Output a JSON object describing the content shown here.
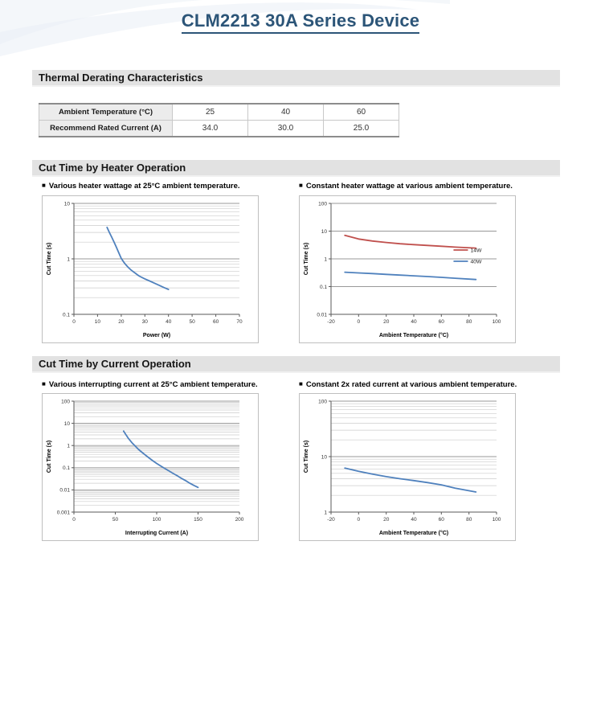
{
  "page": {
    "title": "CLM2213 30A Series Device"
  },
  "icons": {
    "bullet": "■"
  },
  "colors": {
    "title_blue": "#2C5578",
    "section_bar_bg": "#E2E2E2",
    "table_label_bg": "#ECECEC",
    "series_blue": "#4F81BD",
    "series_red": "#C0504D"
  },
  "sections": {
    "thermal": {
      "title": "Thermal Derating Characteristics"
    },
    "heater": {
      "title": "Cut Time by Heater Operation",
      "left_caption": "Various heater wattage at 25°C ambient temperature.",
      "right_caption": "Constant heater wattage at various ambient temperature."
    },
    "current": {
      "title": "Cut Time by Current Operation",
      "left_caption": "Various interrupting current at 25°C ambient temperature.",
      "right_caption": "Constant 2x rated current at various ambient temperature."
    }
  },
  "table": {
    "rows": [
      {
        "label": "Ambient Temperature (°C)",
        "values": [
          "25",
          "40",
          "60"
        ]
      },
      {
        "label": "Recommend Rated Current (A)",
        "values": [
          "34.0",
          "30.0",
          "25.0"
        ]
      }
    ]
  },
  "chart_data": [
    {
      "name": "various-heater-wattage-25c",
      "type": "line",
      "xlabel": "Power (W)",
      "ylabel": "Cut Time (s)",
      "x_scale": "linear",
      "y_scale": "log",
      "xlim": [
        0,
        70
      ],
      "x_ticks": [
        0,
        10,
        20,
        30,
        40,
        50,
        60,
        70
      ],
      "x_tick_labels": [
        "0",
        "10",
        "20",
        "30",
        "40",
        "50",
        "60",
        "70"
      ],
      "ylim": [
        0.1,
        10
      ],
      "y_ticks": [
        0.1,
        1,
        10
      ],
      "y_tick_labels": [
        "0.1",
        "1",
        "10"
      ],
      "minor_gridlines": true,
      "legend": false,
      "series": [
        {
          "name": "",
          "color": "#4F81BD",
          "points": [
            [
              14,
              3.7
            ],
            [
              15,
              3.0
            ],
            [
              16,
              2.45
            ],
            [
              17,
              2.0
            ],
            [
              18,
              1.6
            ],
            [
              19,
              1.28
            ],
            [
              20,
              1.02
            ],
            [
              21,
              0.88
            ],
            [
              22,
              0.78
            ],
            [
              23,
              0.7
            ],
            [
              24,
              0.64
            ],
            [
              25,
              0.59
            ],
            [
              26,
              0.55
            ],
            [
              27,
              0.51
            ],
            [
              28,
              0.48
            ],
            [
              30,
              0.435
            ],
            [
              32,
              0.4
            ],
            [
              34,
              0.365
            ],
            [
              36,
              0.335
            ],
            [
              38,
              0.305
            ],
            [
              40,
              0.28
            ]
          ]
        }
      ]
    },
    {
      "name": "constant-heater-wattage-vs-ambient",
      "type": "line",
      "xlabel": "Ambient Temperature (°C)",
      "ylabel": "Cut Time (s)",
      "x_scale": "linear",
      "y_scale": "log",
      "xlim": [
        -20,
        100
      ],
      "x_ticks": [
        -20,
        0,
        20,
        40,
        60,
        80,
        100
      ],
      "x_tick_labels": [
        "-20",
        "0",
        "20",
        "40",
        "60",
        "80",
        "100"
      ],
      "ylim": [
        0.01,
        100
      ],
      "y_ticks": [
        0.01,
        0.1,
        1,
        10,
        100
      ],
      "y_tick_labels": [
        "0.01",
        "0.1",
        "1",
        "10",
        "100"
      ],
      "minor_gridlines": false,
      "legend": true,
      "series": [
        {
          "name": "14W",
          "color": "#C0504D",
          "points": [
            [
              -10,
              7.0
            ],
            [
              0,
              5.2
            ],
            [
              10,
              4.4
            ],
            [
              20,
              3.9
            ],
            [
              30,
              3.5
            ],
            [
              40,
              3.25
            ],
            [
              50,
              3.05
            ],
            [
              60,
              2.85
            ],
            [
              70,
              2.65
            ],
            [
              85,
              2.45
            ]
          ]
        },
        {
          "name": "40W",
          "color": "#4F81BD",
          "points": [
            [
              -10,
              0.33
            ],
            [
              0,
              0.31
            ],
            [
              10,
              0.295
            ],
            [
              20,
              0.275
            ],
            [
              30,
              0.26
            ],
            [
              40,
              0.245
            ],
            [
              50,
              0.23
            ],
            [
              60,
              0.215
            ],
            [
              70,
              0.2
            ],
            [
              85,
              0.18
            ]
          ]
        }
      ]
    },
    {
      "name": "various-interrupting-current-25c",
      "type": "line",
      "xlabel": "Interrupting Current (A)",
      "ylabel": "Cut Time (s)",
      "x_scale": "linear",
      "y_scale": "log",
      "xlim": [
        0,
        200
      ],
      "x_ticks": [
        0,
        50,
        100,
        150,
        200
      ],
      "x_tick_labels": [
        "0",
        "50",
        "100",
        "150",
        "200"
      ],
      "ylim": [
        0.001,
        100
      ],
      "y_ticks": [
        0.001,
        0.01,
        0.1,
        1,
        10,
        100
      ],
      "y_tick_labels": [
        "0.001",
        "0.01",
        "0.1",
        "1",
        "10",
        "100"
      ],
      "minor_gridlines": true,
      "legend": false,
      "series": [
        {
          "name": "",
          "color": "#4F81BD",
          "points": [
            [
              60,
              4.5
            ],
            [
              63,
              3.0
            ],
            [
              66,
              2.05
            ],
            [
              70,
              1.35
            ],
            [
              74,
              0.95
            ],
            [
              78,
              0.67
            ],
            [
              82,
              0.5
            ],
            [
              86,
              0.38
            ],
            [
              90,
              0.29
            ],
            [
              95,
              0.21
            ],
            [
              100,
              0.155
            ],
            [
              105,
              0.118
            ],
            [
              110,
              0.091
            ],
            [
              115,
              0.071
            ],
            [
              120,
              0.055
            ],
            [
              125,
              0.043
            ],
            [
              130,
              0.033
            ],
            [
              135,
              0.026
            ],
            [
              140,
              0.02
            ],
            [
              145,
              0.016
            ],
            [
              150,
              0.013
            ]
          ]
        }
      ]
    },
    {
      "name": "constant-2x-rated-current-vs-ambient",
      "type": "line",
      "xlabel": "Ambient Temperature (°C)",
      "ylabel": "Cut Time (s)",
      "x_scale": "linear",
      "y_scale": "log",
      "xlim": [
        -20,
        100
      ],
      "x_ticks": [
        -20,
        0,
        20,
        40,
        60,
        80,
        100
      ],
      "x_tick_labels": [
        "-20",
        "0",
        "20",
        "40",
        "60",
        "80",
        "100"
      ],
      "ylim": [
        1,
        100
      ],
      "y_ticks": [
        1,
        10,
        100
      ],
      "y_tick_labels": [
        "1",
        "10",
        "100"
      ],
      "minor_gridlines": true,
      "legend": false,
      "series": [
        {
          "name": "",
          "color": "#4F81BD",
          "points": [
            [
              -10,
              6.2
            ],
            [
              0,
              5.45
            ],
            [
              10,
              4.85
            ],
            [
              20,
              4.35
            ],
            [
              30,
              4.0
            ],
            [
              40,
              3.7
            ],
            [
              50,
              3.4
            ],
            [
              60,
              3.1
            ],
            [
              70,
              2.7
            ],
            [
              85,
              2.3
            ]
          ]
        }
      ]
    }
  ]
}
